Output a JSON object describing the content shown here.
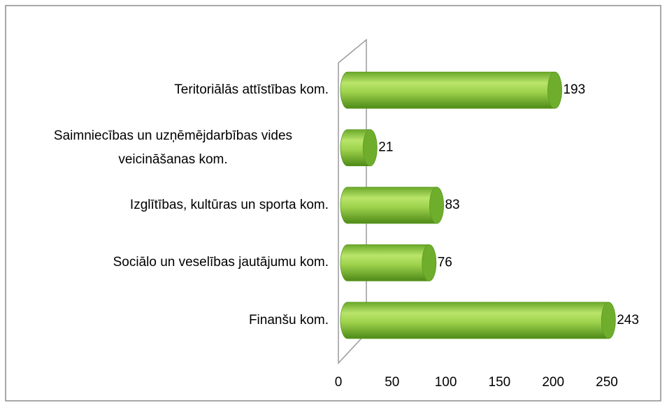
{
  "chart_data": {
    "type": "bar3d-horizontal",
    "categories": [
      "Teritoriālās attīstības kom.",
      "Saimniecības un uzņēmējdarbības vides veicināšanas  kom.",
      "Izglītības, kultūras un sporta kom.",
      "Sociālo un veselības jautājumu kom.",
      "Finanšu kom."
    ],
    "values": [
      193,
      21,
      83,
      76,
      243
    ],
    "color": "#8cc63f",
    "xlim": [
      0,
      250
    ],
    "xticks": [
      0,
      50,
      100,
      150,
      200,
      250
    ],
    "grid": false
  }
}
